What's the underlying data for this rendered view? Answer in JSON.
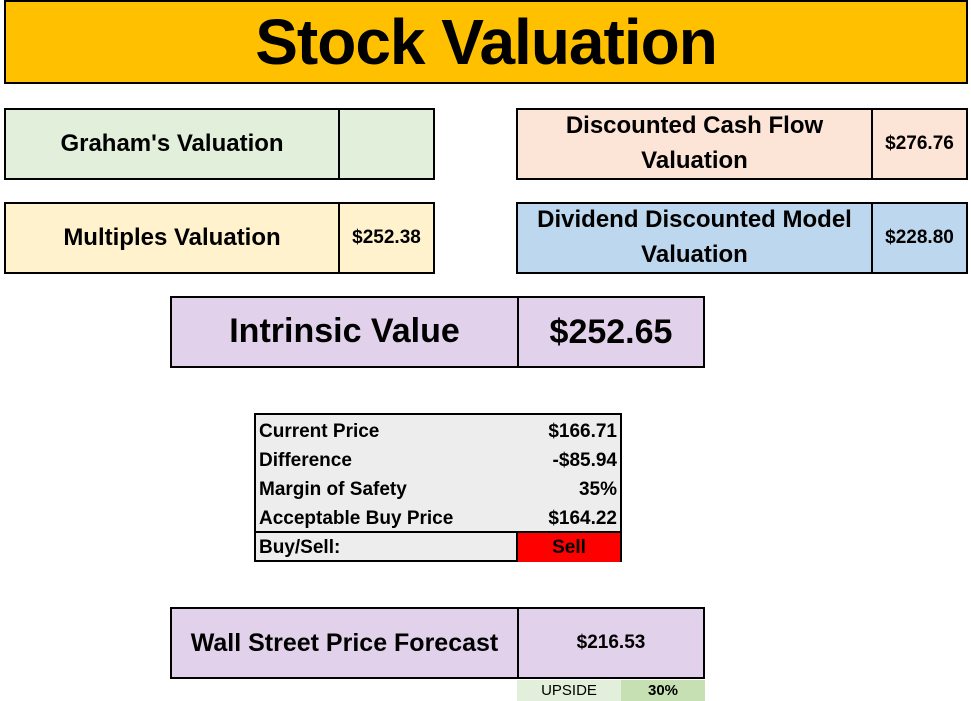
{
  "title": "Stock Valuation",
  "graham": {
    "label": "Graham's Valuation",
    "value": ""
  },
  "dcf": {
    "label": "Discounted Cash Flow Valuation",
    "value": "$276.76"
  },
  "multiples": {
    "label": "Multiples Valuation",
    "value": "$252.38"
  },
  "ddm": {
    "label": "Dividend Discounted Model Valuation",
    "value": "$228.80"
  },
  "intrinsic": {
    "label": "Intrinsic Value",
    "value": "$252.65"
  },
  "summary": [
    {
      "label": "Current Price",
      "value": "$166.71"
    },
    {
      "label": "Difference",
      "value": "-$85.94"
    },
    {
      "label": "Margin of Safety",
      "value": "35%"
    },
    {
      "label": "Acceptable Buy Price",
      "value": "$164.22"
    },
    {
      "label": "Buy/Sell:",
      "value": "Sell"
    }
  ],
  "forecast": {
    "label": "Wall Street Price Forecast",
    "value": "$216.53"
  },
  "upside": {
    "label": "UPSIDE",
    "value": "30%"
  },
  "colors": {
    "title_bg": "#ffc000",
    "green": "#e2efda",
    "peach": "#fce4d6",
    "cream": "#fff2cc",
    "blue": "#bdd7ee",
    "purple": "#e1d1ea",
    "sell": "#ff0000"
  }
}
